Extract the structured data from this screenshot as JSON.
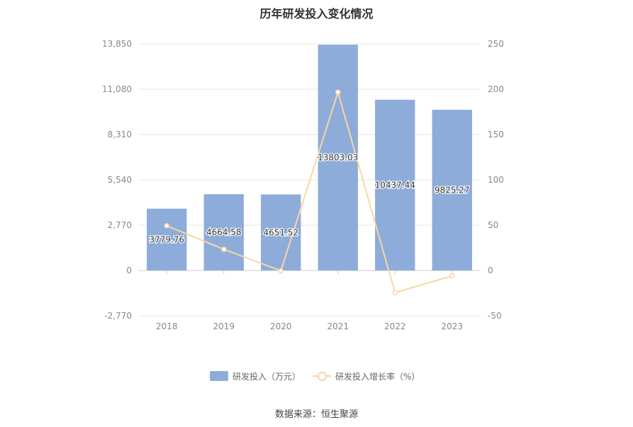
{
  "chart_data": {
    "type": "bar",
    "title": "历年研发投入变化情况",
    "categories": [
      "2018",
      "2019",
      "2020",
      "2021",
      "2022",
      "2023"
    ],
    "series": [
      {
        "name": "研发投入（万元）",
        "type": "bar",
        "axis": "left",
        "values": [
          3779.76,
          4664.58,
          4651.52,
          13803.03,
          10437.44,
          9825.27
        ],
        "labels": [
          "3779.76",
          "4664.58",
          "4651.52",
          "13803.03",
          "10437.44",
          "9825.27"
        ]
      },
      {
        "name": "研发投入增长率（%）",
        "type": "line",
        "axis": "right",
        "values": [
          49.4,
          23.4,
          -0.3,
          196.7,
          -24.4,
          -5.9
        ]
      }
    ],
    "y_left": {
      "ticks": [
        -2770,
        0,
        2770,
        5540,
        8310,
        11080,
        13850
      ],
      "tick_labels": [
        "-2,770",
        "0",
        "2,770",
        "5,540",
        "8,310",
        "11,080",
        "13,850"
      ],
      "lim": [
        -2770,
        13850
      ]
    },
    "y_right": {
      "ticks": [
        -50,
        0,
        50,
        100,
        150,
        200,
        250
      ],
      "tick_labels": [
        "-50",
        "0",
        "50",
        "100",
        "150",
        "200",
        "250"
      ],
      "lim": [
        -50,
        250
      ]
    },
    "grid": true,
    "legend": "bottom",
    "colors": {
      "bar": "#8eacd9",
      "line": "#f8d7a3",
      "grid": "#e6e6e6",
      "axis_text": "#888888"
    }
  },
  "source_text": "数据来源：恒生聚源"
}
